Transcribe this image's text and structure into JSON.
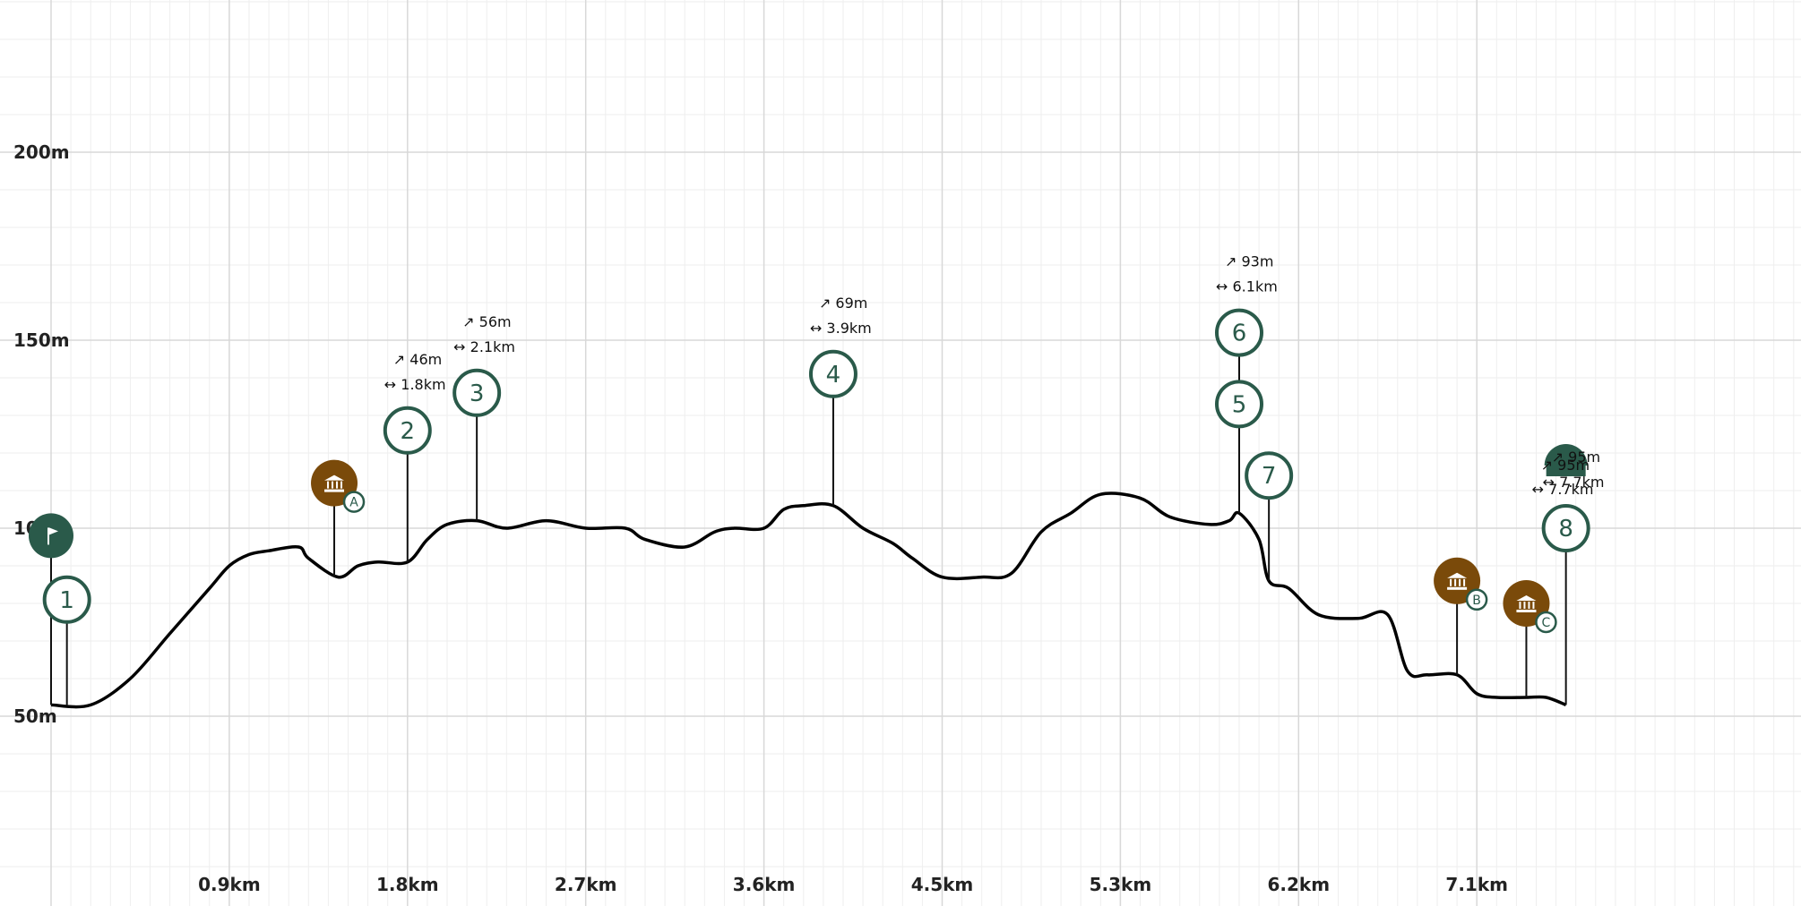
{
  "chart_data": {
    "type": "area",
    "title": "",
    "xlabel": "",
    "ylabel": "",
    "x_unit": "km",
    "y_unit": "m",
    "xlim": [
      0,
      8.0
    ],
    "ylim": [
      10,
      235
    ],
    "grid": true,
    "x_ticks": [
      "0.9km",
      "1.8km",
      "2.7km",
      "3.6km",
      "4.5km",
      "5.3km",
      "6.2km",
      "7.1km"
    ],
    "y_ticks": [
      "50m",
      "100m",
      "150m",
      "200m"
    ],
    "profile": {
      "x": [
        0,
        0.2,
        0.4,
        0.6,
        0.8,
        0.9,
        1.0,
        1.1,
        1.25,
        1.3,
        1.45,
        1.55,
        1.65,
        1.8,
        1.9,
        2.0,
        2.15,
        2.3,
        2.5,
        2.7,
        2.9,
        3.0,
        3.2,
        3.35,
        3.45,
        3.6,
        3.7,
        3.8,
        3.95,
        4.1,
        4.25,
        4.35,
        4.5,
        4.7,
        4.85,
        5.0,
        5.15,
        5.3,
        5.5,
        5.65,
        5.85,
        5.95,
        6.0,
        6.1,
        6.15,
        6.25,
        6.4,
        6.6,
        6.75,
        6.85,
        6.95,
        7.1,
        7.2,
        7.3,
        7.45,
        7.55,
        7.65
      ],
      "y": [
        53,
        53,
        60,
        72,
        84,
        90,
        93,
        94,
        95,
        92,
        87,
        90,
        91,
        91,
        97,
        101,
        102,
        100,
        102,
        100,
        100,
        97,
        95,
        99,
        100,
        100,
        105,
        106,
        106,
        100,
        96,
        92,
        87,
        87,
        88,
        99,
        104,
        109,
        108,
        103,
        101,
        102,
        104,
        97,
        86,
        84,
        77,
        76,
        77,
        62,
        61,
        61,
        56,
        55,
        55,
        55,
        53
      ]
    },
    "waypoints": [
      {
        "label": "1",
        "x": 0.08,
        "y": 81,
        "stem_from": 53
      },
      {
        "label": "2",
        "x": 1.8,
        "y": 126,
        "stem_from": 91,
        "climb": "46m",
        "dist": "1.8km"
      },
      {
        "label": "3",
        "x": 2.15,
        "y": 136,
        "stem_from": 102,
        "climb": "56m",
        "dist": "2.1km"
      },
      {
        "label": "4",
        "x": 3.95,
        "y": 141,
        "stem_from": 106,
        "climb": "69m",
        "dist": "3.9km"
      },
      {
        "label": "5",
        "x": 6.0,
        "y": 133,
        "stem_from": 104
      },
      {
        "label": "6",
        "x": 6.0,
        "y": 152,
        "stem_from": 133,
        "climb": "93m",
        "dist": "6.1km"
      },
      {
        "label": "7",
        "x": 6.15,
        "y": 114,
        "stem_from": 86
      },
      {
        "label": "8",
        "x": 7.65,
        "y": 100,
        "stem_from": 53,
        "climb": "95m",
        "dist": "7.7km"
      }
    ],
    "pois": [
      {
        "label": "A",
        "x": 1.43,
        "y": 112,
        "stem_from": 87
      },
      {
        "label": "B",
        "x": 7.1,
        "y": 86,
        "stem_from": 61
      },
      {
        "label": "C",
        "x": 7.45,
        "y": 80,
        "stem_from": 55
      }
    ],
    "start_marker": {
      "x": 0,
      "y": 98
    },
    "extra_stat": {
      "x": 7.65,
      "climb": "95m",
      "dist": "7.7km"
    },
    "colors": {
      "line": "#000000",
      "waypoint": "#2a5a4a",
      "poi": "#7a4a0a",
      "start": "#2a5a4a",
      "grid_major": "#d8d8d8",
      "grid_minor": "#eeeeee"
    }
  }
}
